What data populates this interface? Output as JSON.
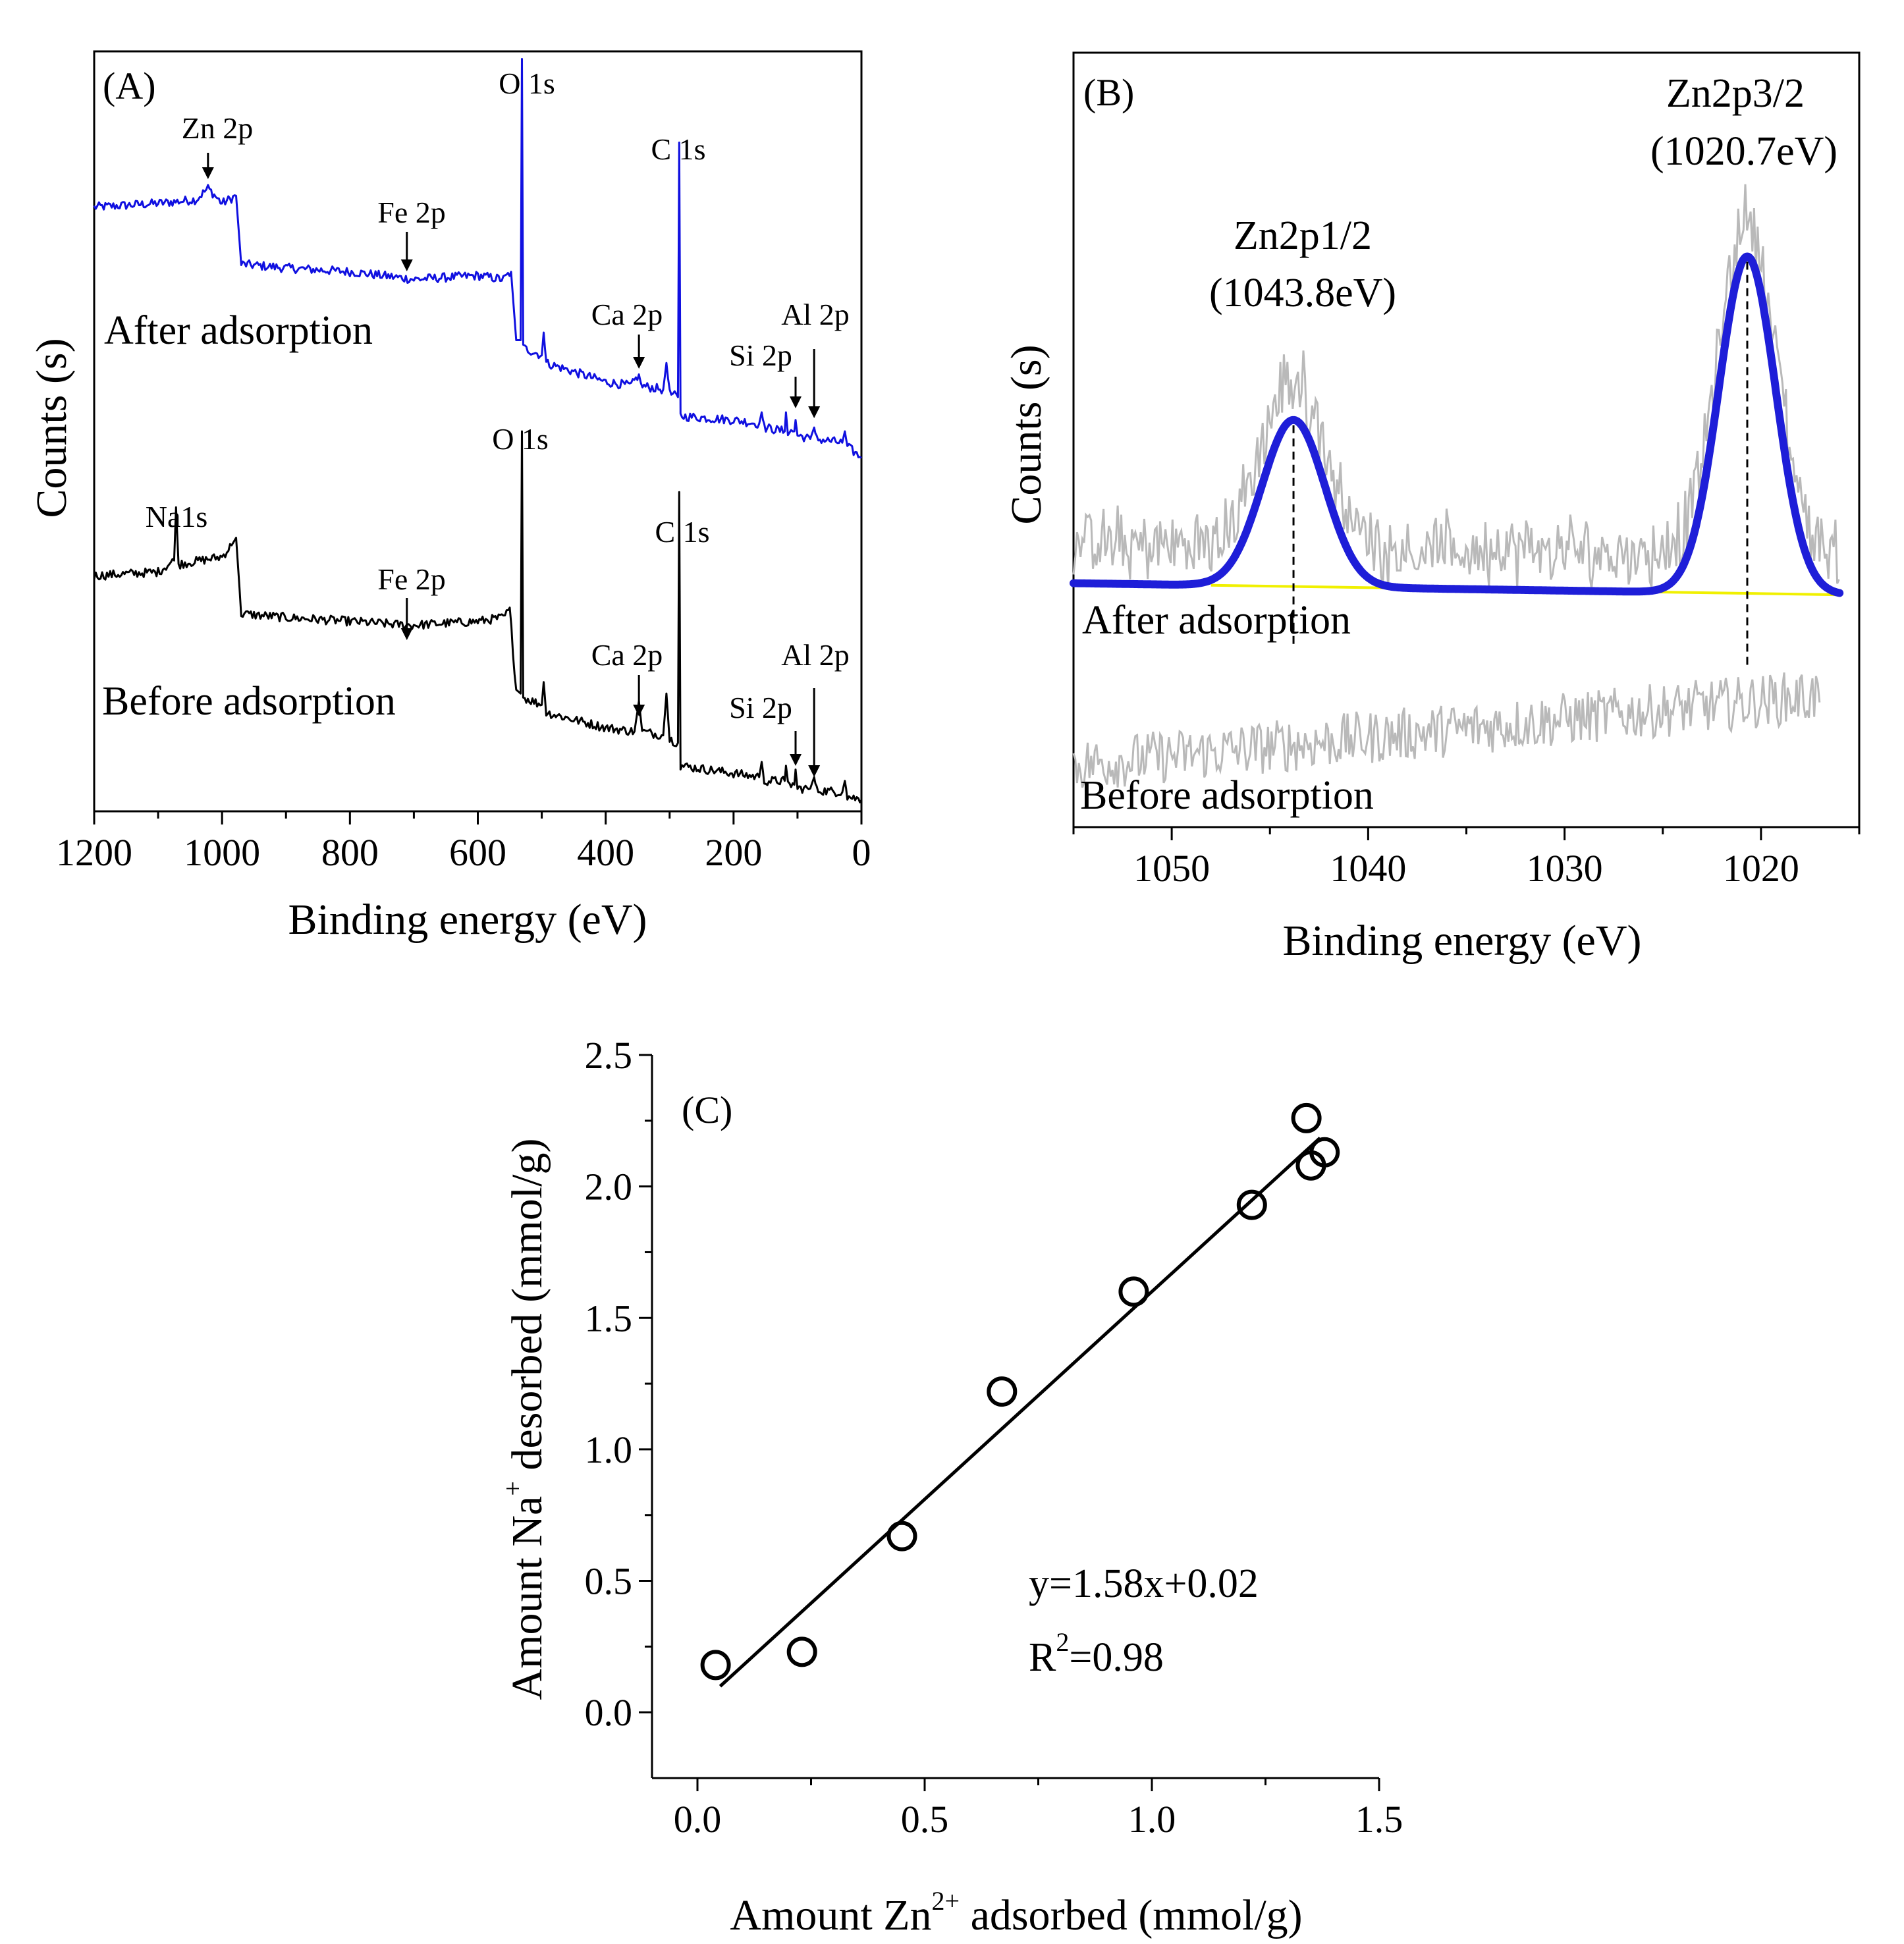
{
  "colors": {
    "after": "#1010e0",
    "before": "#000000",
    "noise": "#b9b9b9",
    "fit": "#1e1ed8",
    "baseline": "#f0f000",
    "axis": "#000000"
  },
  "chart_data": [
    {
      "id": "A",
      "type": "line",
      "panel_label": "(A)",
      "xlabel": "Binding energy (eV)",
      "ylabel": "Counts (s)",
      "xlim": [
        1200,
        0
      ],
      "x_ticks": [
        1200,
        1000,
        800,
        600,
        400,
        200,
        0
      ],
      "x_tick_labels": [
        "1200",
        "1000",
        "800",
        "600",
        "400",
        "200",
        "0"
      ],
      "series": [
        {
          "name": "After adsorption",
          "color": "after",
          "label": "After adsorption",
          "points": [
            [
              1200,
              0.795
            ],
            [
              1100,
              0.8
            ],
            [
              1040,
              0.805
            ],
            [
              1022,
              0.82
            ],
            [
              1000,
              0.8
            ],
            [
              978,
              0.81
            ],
            [
              970,
              0.72
            ],
            [
              900,
              0.715
            ],
            [
              800,
              0.71
            ],
            [
              700,
              0.7
            ],
            [
              600,
              0.705
            ],
            [
              560,
              0.7
            ],
            [
              548,
              0.71
            ],
            [
              540,
              0.62
            ],
            [
              533,
              0.62
            ],
            [
              531,
              0.99
            ],
            [
              529,
              0.61
            ],
            [
              500,
              0.6
            ],
            [
              497,
              0.63
            ],
            [
              493,
              0.59
            ],
            [
              400,
              0.565
            ],
            [
              360,
              0.56
            ],
            [
              348,
              0.575
            ],
            [
              345,
              0.56
            ],
            [
              310,
              0.555
            ],
            [
              305,
              0.59
            ],
            [
              300,
              0.55
            ],
            [
              287,
              0.545
            ],
            [
              285,
              0.88
            ],
            [
              283,
              0.52
            ],
            [
              200,
              0.515
            ],
            [
              160,
              0.51
            ],
            [
              156,
              0.525
            ],
            [
              152,
              0.505
            ],
            [
              120,
              0.5
            ],
            [
              118,
              0.525
            ],
            [
              115,
              0.5
            ],
            [
              105,
              0.5
            ],
            [
              103,
              0.515
            ],
            [
              100,
              0.495
            ],
            [
              80,
              0.49
            ],
            [
              74,
              0.505
            ],
            [
              70,
              0.49
            ],
            [
              30,
              0.485
            ],
            [
              26,
              0.5
            ],
            [
              22,
              0.48
            ],
            [
              0,
              0.465
            ]
          ],
          "annotations": [
            {
              "label": "Zn 2p",
              "x": 1022,
              "style": "arrow"
            },
            {
              "label": "Fe 2p",
              "x": 711,
              "style": "arrow"
            },
            {
              "label": "O 1s",
              "x": 531,
              "style": "text"
            },
            {
              "label": "C 1s",
              "x": 285,
              "style": "text"
            },
            {
              "label": "Ca 2p",
              "x": 348,
              "style": "arrow"
            },
            {
              "label": "Si 2p",
              "x": 103,
              "style": "arrow"
            },
            {
              "label": "Al 2p",
              "x": 74,
              "style": "arrow"
            }
          ]
        },
        {
          "name": "Before adsorption",
          "color": "before",
          "label": "Before adsorption",
          "points": [
            [
              1200,
              0.31
            ],
            [
              1100,
              0.315
            ],
            [
              1075,
              0.33
            ],
            [
              1072,
              0.4
            ],
            [
              1068,
              0.325
            ],
            [
              1000,
              0.335
            ],
            [
              985,
              0.35
            ],
            [
              978,
              0.36
            ],
            [
              970,
              0.26
            ],
            [
              900,
              0.255
            ],
            [
              800,
              0.25
            ],
            [
              711,
              0.245
            ],
            [
              700,
              0.245
            ],
            [
              600,
              0.25
            ],
            [
              560,
              0.255
            ],
            [
              550,
              0.265
            ],
            [
              540,
              0.16
            ],
            [
              533,
              0.155
            ],
            [
              531,
              0.5
            ],
            [
              529,
              0.15
            ],
            [
              500,
              0.14
            ],
            [
              497,
              0.17
            ],
            [
              493,
              0.13
            ],
            [
              400,
              0.11
            ],
            [
              355,
              0.105
            ],
            [
              348,
              0.145
            ],
            [
              343,
              0.105
            ],
            [
              310,
              0.1
            ],
            [
              305,
              0.155
            ],
            [
              300,
              0.095
            ],
            [
              287,
              0.09
            ],
            [
              285,
              0.42
            ],
            [
              283,
              0.06
            ],
            [
              200,
              0.05
            ],
            [
              160,
              0.045
            ],
            [
              156,
              0.065
            ],
            [
              152,
              0.04
            ],
            [
              120,
              0.04
            ],
            [
              118,
              0.06
            ],
            [
              115,
              0.035
            ],
            [
              105,
              0.035
            ],
            [
              103,
              0.055
            ],
            [
              100,
              0.03
            ],
            [
              80,
              0.03
            ],
            [
              74,
              0.045
            ],
            [
              70,
              0.028
            ],
            [
              30,
              0.025
            ],
            [
              26,
              0.04
            ],
            [
              22,
              0.02
            ],
            [
              0,
              0.015
            ]
          ],
          "annotations": [
            {
              "label": "Na1s",
              "x": 1072,
              "style": "text"
            },
            {
              "label": "Fe 2p",
              "x": 711,
              "style": "arrow"
            },
            {
              "label": "O 1s",
              "x": 531,
              "style": "text"
            },
            {
              "label": "C 1s",
              "x": 285,
              "style": "text"
            },
            {
              "label": "Ca 2p",
              "x": 348,
              "style": "arrow"
            },
            {
              "label": "Si 2p",
              "x": 103,
              "style": "arrow"
            },
            {
              "label": "Al 2p",
              "x": 74,
              "style": "arrow"
            }
          ]
        }
      ]
    },
    {
      "id": "B",
      "type": "line",
      "panel_label": "(B)",
      "xlabel": "Binding energy (eV)",
      "ylabel": "Counts (s)",
      "xlim": [
        1055,
        1015
      ],
      "x_ticks": [
        1050,
        1040,
        1030,
        1020
      ],
      "x_tick_labels": [
        "1050",
        "1040",
        "1030",
        "1020"
      ],
      "after_label": "After adsorption",
      "before_label": "Before adsorption",
      "fit": {
        "baseline_start": [
          1055,
          0.315
        ],
        "baseline_end": [
          1016,
          0.3
        ],
        "peaks": [
          {
            "center": 1043.8,
            "height": 0.215,
            "width": 1.6,
            "label_line1": "Zn2p1/2",
            "label_line2": "(1043.8eV)"
          },
          {
            "center": 1020.7,
            "height": 0.435,
            "width": 1.45,
            "label_line1": "Zn2p3/2",
            "label_line2": "(1020.7eV)"
          }
        ],
        "x_end": 1016
      },
      "raw_after": {
        "start": 1055,
        "end": 1016,
        "noise": 0.035
      },
      "raw_before": {
        "start": 1055,
        "end": 1017,
        "level_start": 0.08,
        "level_end": 0.17,
        "noise": 0.035
      }
    },
    {
      "id": "C",
      "type": "scatter",
      "panel_label": "(C)",
      "xlabel_pre": "Amount Zn",
      "xlabel_sup": "2+",
      "xlabel_post": " adsorbed (mmol/g)",
      "ylabel_pre": "Amount Na",
      "ylabel_sup": "+",
      "ylabel_post": " desorbed (mmol/g)",
      "xlim": [
        -0.1,
        1.5
      ],
      "ylim": [
        -0.25,
        2.5
      ],
      "x_ticks": [
        0.0,
        0.5,
        1.0,
        1.5
      ],
      "x_tick_labels": [
        "0.0",
        "0.5",
        "1.0",
        "1.5"
      ],
      "y_ticks": [
        0.0,
        0.5,
        1.0,
        1.5,
        2.0,
        2.5
      ],
      "y_tick_labels": [
        "0.0",
        "0.5",
        "1.0",
        "1.5",
        "2.0",
        "2.5"
      ],
      "points": [
        [
          0.04,
          0.18
        ],
        [
          0.23,
          0.23
        ],
        [
          0.45,
          0.67
        ],
        [
          0.67,
          1.22
        ],
        [
          0.96,
          1.6
        ],
        [
          1.22,
          1.93
        ],
        [
          1.34,
          2.26
        ],
        [
          1.35,
          2.08
        ],
        [
          1.38,
          2.13
        ]
      ],
      "fit_line": {
        "x0": 0.05,
        "x1": 1.37,
        "slope": 1.58,
        "intercept": 0.02
      },
      "equation": "y=1.58x+0.02",
      "r2_pre": "R",
      "r2_sup": "2",
      "r2_post": "=0.98"
    }
  ]
}
